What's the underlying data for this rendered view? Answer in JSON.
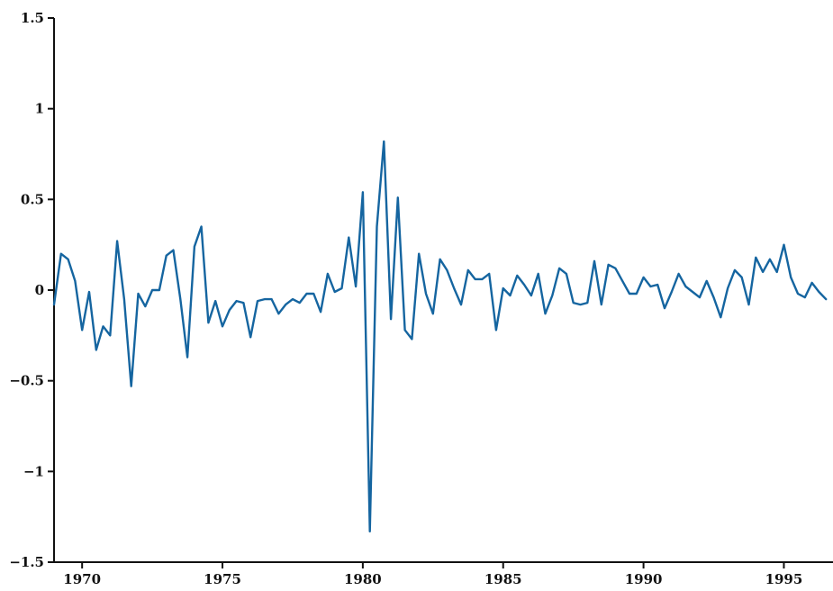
{
  "chart_data": {
    "type": "line",
    "title": "",
    "xlabel": "",
    "ylabel": "",
    "xlim": [
      1969.0,
      1996.75
    ],
    "ylim": [
      -1.5,
      1.5
    ],
    "x_ticks": [
      {
        "value": 1970,
        "label": "1970"
      },
      {
        "value": 1975,
        "label": "1975"
      },
      {
        "value": 1980,
        "label": "1980"
      },
      {
        "value": 1985,
        "label": "1985"
      },
      {
        "value": 1990,
        "label": "1990"
      },
      {
        "value": 1995,
        "label": "1995"
      }
    ],
    "y_ticks": [
      {
        "value": 1.5,
        "label": "1.5"
      },
      {
        "value": 1,
        "label": "1"
      },
      {
        "value": 0.5,
        "label": "0.5"
      },
      {
        "value": 0,
        "label": "0"
      },
      {
        "value": -0.5,
        "label": "−0.5"
      },
      {
        "value": -1,
        "label": "−1"
      },
      {
        "value": -1.5,
        "label": "−1.5"
      }
    ],
    "grid": false,
    "legend": "none",
    "series": [
      {
        "color": "#1565a0",
        "start": 1969.0,
        "step": 0.25,
        "values": [
          -0.08,
          0.2,
          0.17,
          0.05,
          -0.22,
          -0.01,
          -0.33,
          -0.2,
          -0.25,
          0.27,
          -0.05,
          -0.53,
          -0.02,
          -0.09,
          0.0,
          0.0,
          0.19,
          0.22,
          -0.05,
          -0.37,
          0.24,
          0.35,
          -0.18,
          -0.06,
          -0.2,
          -0.11,
          -0.06,
          -0.07,
          -0.26,
          -0.06,
          -0.05,
          -0.05,
          -0.13,
          -0.08,
          -0.05,
          -0.07,
          -0.02,
          -0.02,
          -0.12,
          0.09,
          -0.01,
          0.01,
          0.29,
          0.02,
          0.54,
          -1.33,
          0.35,
          0.82,
          -0.16,
          0.51,
          -0.22,
          -0.27,
          0.2,
          -0.02,
          -0.13,
          0.17,
          0.11,
          0.01,
          -0.08,
          0.11,
          0.06,
          0.06,
          0.09,
          -0.22,
          0.01,
          -0.03,
          0.08,
          0.03,
          -0.03,
          0.09,
          -0.13,
          -0.03,
          0.12,
          0.09,
          -0.07,
          -0.08,
          -0.07,
          0.16,
          -0.08,
          0.14,
          0.12,
          0.05,
          -0.02,
          -0.02,
          0.07,
          0.02,
          0.03,
          -0.1,
          -0.01,
          0.09,
          0.02,
          -0.01,
          -0.04,
          0.05,
          -0.04,
          -0.15,
          0.01,
          0.11,
          0.07,
          -0.08,
          0.18,
          0.1,
          0.17,
          0.1,
          0.25,
          0.07,
          -0.02,
          -0.04,
          0.04,
          -0.01,
          -0.05
        ]
      }
    ]
  }
}
